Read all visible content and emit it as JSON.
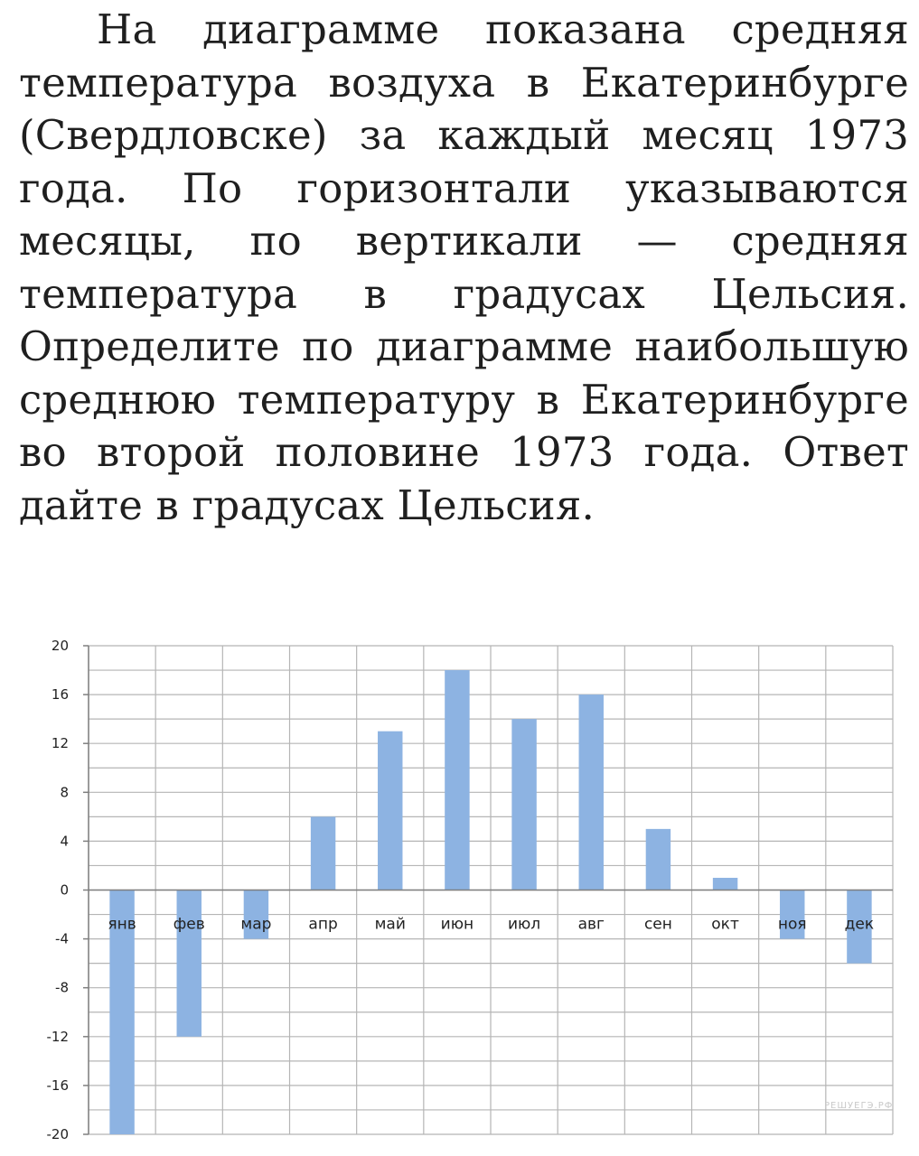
{
  "problem": {
    "text": "На диаграмме показана средняя температура воздуха в Екатеринбурге (Свердловске) за каждый месяц 1973 года. По горизонтали указываются месяцы, по вертикали — средняя температура в градусах Цельсия. Определите по диаграмме наибольшую среднюю температуру в Екатеринбурге во второй половине 1973 года. Ответ дайте в градусах Цельсия."
  },
  "watermark": "РЕШУЕГЭ.РФ",
  "chart_data": {
    "type": "bar",
    "title": "",
    "xlabel": "",
    "ylabel": "",
    "categories": [
      "янв",
      "фев",
      "мар",
      "апр",
      "май",
      "июн",
      "июл",
      "авг",
      "сен",
      "окт",
      "ноя",
      "дек"
    ],
    "values": [
      -20,
      -12,
      -4,
      6,
      13,
      18,
      14,
      16,
      5,
      1,
      -4,
      -6
    ],
    "ylim": [
      -20,
      20
    ],
    "yticks": [
      20,
      16,
      12,
      8,
      4,
      0,
      -4,
      -8,
      -12,
      -16,
      -20
    ],
    "minor_grid_step": 2,
    "grid": true,
    "legend": "none",
    "bar_color": "#8db3e2",
    "grid_color": "#b5b5b5",
    "zero_line_color": "#7f7f7f"
  }
}
